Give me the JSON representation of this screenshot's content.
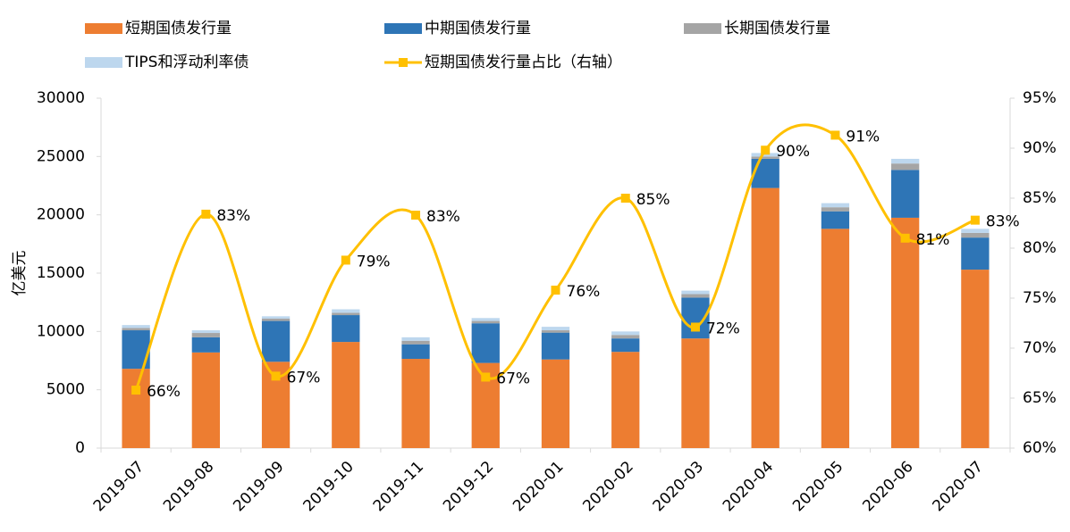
{
  "chart_data": {
    "type": "bar",
    "stacked": true,
    "y_label": "亿美元",
    "categories": [
      "2019-07",
      "2019-08",
      "2019-09",
      "2019-10",
      "2019-11",
      "2019-12",
      "2020-01",
      "2020-02",
      "2020-03",
      "2020-04",
      "2020-05",
      "2020-06",
      "2020-07"
    ],
    "series": [
      {
        "name": "短期国债发行量",
        "color": "#ED7D31",
        "values": [
          6800,
          8200,
          7400,
          9100,
          7650,
          7300,
          7600,
          8250,
          9400,
          22300,
          18800,
          19750,
          15300
        ]
      },
      {
        "name": "中期国债发行量",
        "color": "#2E75B6",
        "values": [
          3300,
          1300,
          3500,
          2300,
          1250,
          3400,
          2300,
          1150,
          3500,
          2500,
          1500,
          4100,
          2750
        ]
      },
      {
        "name": "长期国债发行量",
        "color": "#A5A5A5",
        "values": [
          200,
          370,
          200,
          200,
          300,
          200,
          200,
          300,
          300,
          200,
          350,
          550,
          400
        ]
      },
      {
        "name": "TIPS和浮动利率债",
        "color": "#BDD7EE",
        "values": [
          250,
          230,
          200,
          300,
          300,
          250,
          300,
          300,
          300,
          300,
          350,
          400,
          350
        ]
      },
      {
        "name": "短期国债发行量占比（右轴）",
        "color": "#FFC000",
        "type": "line",
        "axis": "y2",
        "values": [
          65.8,
          83.4,
          67.2,
          78.8,
          83.3,
          67.1,
          75.8,
          85.0,
          72.1,
          89.8,
          91.3,
          81.0,
          82.8
        ],
        "value_labels": [
          "66%",
          "83%",
          "67%",
          "79%",
          "83%",
          "67%",
          "76%",
          "85%",
          "72%",
          "90%",
          "91%",
          "81%",
          "83%"
        ]
      }
    ],
    "ylim": [
      0,
      30000
    ],
    "yticks": [
      0,
      5000,
      10000,
      15000,
      20000,
      25000,
      30000
    ],
    "y2lim": [
      60,
      95
    ],
    "y2ticks": [
      {
        "value": 60,
        "label": "60%"
      },
      {
        "value": 65,
        "label": "65%"
      },
      {
        "value": 70,
        "label": "70%"
      },
      {
        "value": 75,
        "label": "75%"
      },
      {
        "value": 80,
        "label": "80%"
      },
      {
        "value": 85,
        "label": "85%"
      },
      {
        "value": 90,
        "label": "90%"
      },
      {
        "value": 95,
        "label": "95%"
      }
    ],
    "grid": false
  }
}
